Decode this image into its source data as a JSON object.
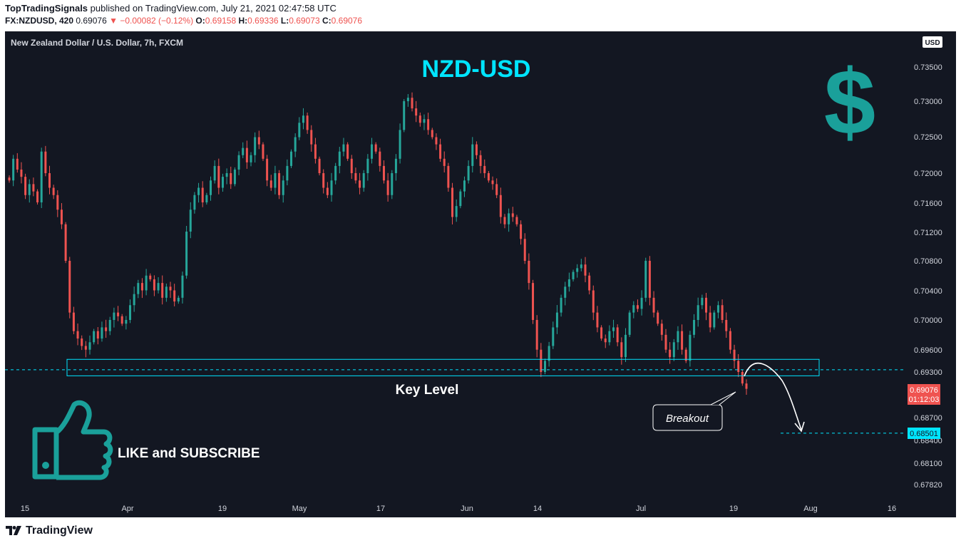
{
  "header": {
    "publisher": "TopTradingSignals",
    "published_text": " published on TradingView.com, July 21, 2021 02:47:58 UTC",
    "symbol": "FX:NZDUSD, 420",
    "last": "0.69076",
    "change": "▼ −0.00082 (−0.12%)",
    "o_label": "O:",
    "o_value": "0.69158",
    "h_label": "H:",
    "h_value": "0.69336",
    "l_label": "L:",
    "l_value": "0.69073",
    "c_label": "C:",
    "c_value": "0.69076"
  },
  "chart_data": {
    "type": "candlestick",
    "instrument": "New Zealand Dollar / U.S. Dollar, 7h, FXCM",
    "title": "NZD-USD",
    "currency": "USD",
    "y_ticks": [
      "0.73500",
      "0.73000",
      "0.72500",
      "0.72000",
      "0.71600",
      "0.71200",
      "0.70800",
      "0.70400",
      "0.70000",
      "0.69600",
      "0.69300",
      "0.68700",
      "0.68400",
      "0.68100",
      "0.67820"
    ],
    "x_ticks": [
      "15",
      "Apr",
      "19",
      "May",
      "17",
      "Jun",
      "14",
      "Jul",
      "19",
      "Aug",
      "16"
    ],
    "last_price_label": "0.69076",
    "countdown_label": "01:12:03",
    "target_label": "0.68501",
    "key_level_zone": [
      0.6925,
      0.6947
    ],
    "key_level_line": 0.6933,
    "target_level": 0.68501,
    "path_closes": [
      0.719,
      0.722,
      0.7205,
      0.7195,
      0.717,
      0.7185,
      0.7175,
      0.716,
      0.723,
      0.72,
      0.718,
      0.717,
      0.715,
      0.713,
      0.708,
      0.701,
      0.6985,
      0.6975,
      0.6965,
      0.696,
      0.697,
      0.6985,
      0.6975,
      0.699,
      0.6985,
      0.7,
      0.701,
      0.7005,
      0.6995,
      0.7,
      0.702,
      0.7035,
      0.705,
      0.704,
      0.706,
      0.7055,
      0.704,
      0.705,
      0.703,
      0.7045,
      0.704,
      0.7025,
      0.703,
      0.706,
      0.712,
      0.715,
      0.717,
      0.718,
      0.716,
      0.717,
      0.719,
      0.721,
      0.718,
      0.7195,
      0.72,
      0.7185,
      0.7205,
      0.7225,
      0.7235,
      0.7215,
      0.7225,
      0.725,
      0.724,
      0.722,
      0.719,
      0.718,
      0.72,
      0.717,
      0.719,
      0.721,
      0.723,
      0.725,
      0.727,
      0.728,
      0.726,
      0.724,
      0.722,
      0.72,
      0.718,
      0.717,
      0.719,
      0.721,
      0.723,
      0.724,
      0.722,
      0.72,
      0.719,
      0.718,
      0.72,
      0.722,
      0.724,
      0.723,
      0.721,
      0.719,
      0.717,
      0.72,
      0.722,
      0.726,
      0.73,
      0.7305,
      0.729,
      0.728,
      0.727,
      0.7275,
      0.726,
      0.725,
      0.724,
      0.722,
      0.721,
      0.718,
      0.714,
      0.7155,
      0.7175,
      0.719,
      0.721,
      0.724,
      0.7225,
      0.721,
      0.72,
      0.719,
      0.7185,
      0.717,
      0.714,
      0.713,
      0.7145,
      0.714,
      0.713,
      0.711,
      0.708,
      0.705,
      0.7,
      0.696,
      0.693,
      0.6945,
      0.6965,
      0.699,
      0.701,
      0.703,
      0.7045,
      0.7055,
      0.7065,
      0.707,
      0.7075,
      0.706,
      0.704,
      0.701,
      0.699,
      0.6975,
      0.697,
      0.6985,
      0.699,
      0.697,
      0.695,
      0.698,
      0.701,
      0.702,
      0.7015,
      0.703,
      0.708,
      0.703,
      0.701,
      0.6995,
      0.698,
      0.696,
      0.695,
      0.697,
      0.6985,
      0.696,
      0.6945,
      0.698,
      0.7,
      0.702,
      0.703,
      0.701,
      0.699,
      0.701,
      0.702,
      0.7,
      0.6985,
      0.696,
      0.6945,
      0.693,
      0.6915,
      0.6908
    ]
  },
  "annotations": {
    "key_level": "Key Level",
    "breakout": "Breakout",
    "cta": "LIKE and SUBSCRIBE"
  },
  "footer": {
    "brand": "TradingView"
  },
  "colors": {
    "background": "#131722",
    "bull": "#26a69a",
    "bear": "#ef5350",
    "cyan": "#00e5ff",
    "teal_icon": "#1aa09a"
  }
}
